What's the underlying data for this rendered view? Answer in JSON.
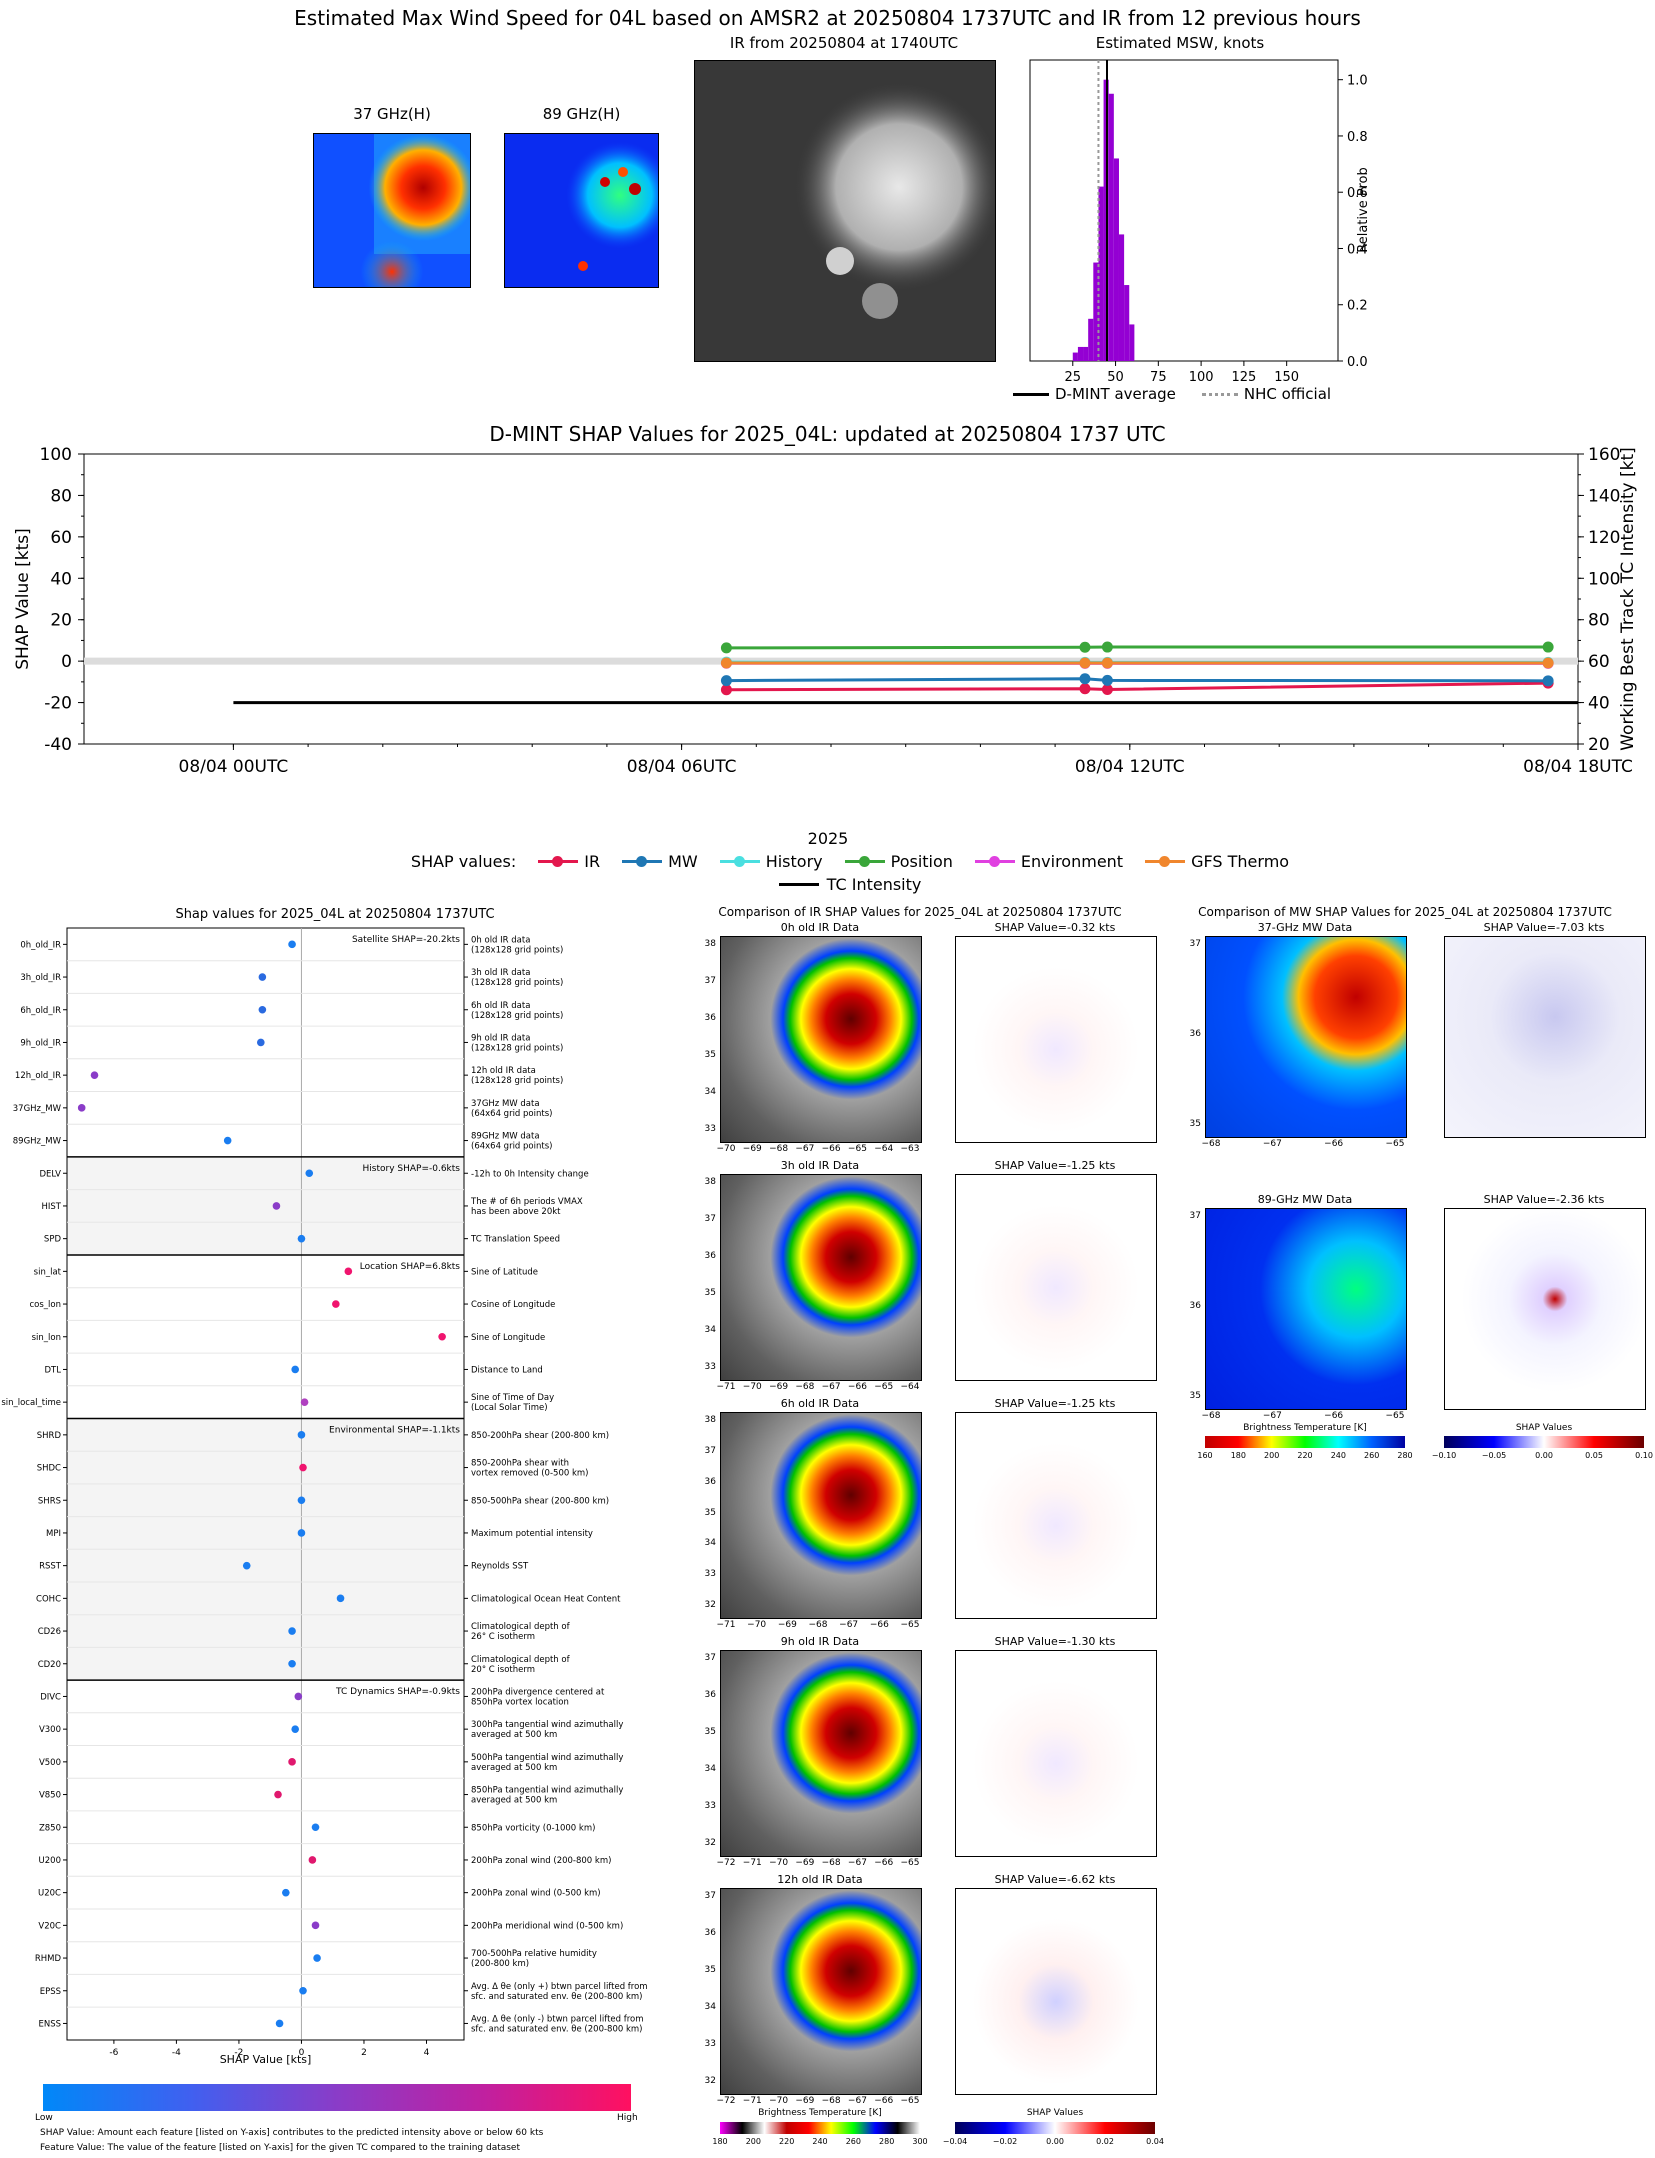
{
  "header": {
    "title": "Estimated Max Wind Speed for 04L based on AMSR2 at 20250804 1737UTC and IR from 12 previous hours",
    "mw37_title": "37 GHz(H)",
    "mw89_title": "89 GHz(H)",
    "ir_title": "IR from 20250804 at 1740UTC",
    "msw_title": "Estimated MSW, knots"
  },
  "msw_hist": {
    "ylabel": "Relative Prob",
    "xticks": [
      "25",
      "50",
      "75",
      "100",
      "125",
      "150"
    ],
    "yticks": [
      "0.0",
      "0.2",
      "0.4",
      "0.6",
      "0.8",
      "1.0"
    ],
    "legend_dmint": "D-MINT average",
    "legend_nhc": "NHC official",
    "dmint_avg": 45,
    "nhc_official": 40,
    "colors": {
      "bar": "#9400d3"
    },
    "bars": [
      {
        "x": 25,
        "p": 0.03
      },
      {
        "x": 28,
        "p": 0.05
      },
      {
        "x": 31,
        "p": 0.05
      },
      {
        "x": 34,
        "p": 0.15
      },
      {
        "x": 37,
        "p": 0.35
      },
      {
        "x": 40,
        "p": 0.62
      },
      {
        "x": 43,
        "p": 1.0
      },
      {
        "x": 46,
        "p": 0.95
      },
      {
        "x": 49,
        "p": 0.72
      },
      {
        "x": 52,
        "p": 0.45
      },
      {
        "x": 55,
        "p": 0.27
      },
      {
        "x": 58,
        "p": 0.13
      }
    ]
  },
  "chart_data": {
    "type": "line",
    "title": "D-MINT SHAP Values for 2025_04L: updated at 20250804 1737 UTC",
    "xlabel": "2025",
    "ylabel": "SHAP Value [kts]",
    "y2label": "Working Best Track TC Intensity [kt]",
    "ylim": [
      -40,
      100
    ],
    "y2lim": [
      20,
      160
    ],
    "yticks": [
      "-40",
      "-20",
      "0",
      "20",
      "40",
      "60",
      "80",
      "100"
    ],
    "y2ticks": [
      "20",
      "40",
      "60",
      "80",
      "100",
      "120",
      "140",
      "160"
    ],
    "xlim_hours": [
      -2,
      18
    ],
    "xticks": [
      {
        "h": 0,
        "label": "08/04 00UTC"
      },
      {
        "h": 6,
        "label": "08/04 06UTC"
      },
      {
        "h": 12,
        "label": "08/04 12UTC"
      },
      {
        "h": 18,
        "label": "08/04 18UTC"
      }
    ],
    "legend_prefix": "SHAP values:",
    "series": [
      {
        "name": "IR",
        "color": "#e3174d",
        "points": [
          [
            6.6,
            -13.8
          ],
          [
            11.4,
            -13.3
          ],
          [
            11.7,
            -13.7
          ],
          [
            17.6,
            -10.6
          ]
        ]
      },
      {
        "name": "MW",
        "color": "#1f77b4",
        "points": [
          [
            6.6,
            -9.4
          ],
          [
            11.4,
            -8.5
          ],
          [
            11.7,
            -9.3
          ],
          [
            17.6,
            -9.5
          ]
        ]
      },
      {
        "name": "History",
        "color": "#4adfe0",
        "points": [
          [
            6.6,
            -0.5
          ],
          [
            11.4,
            -0.6
          ],
          [
            11.7,
            -0.6
          ],
          [
            17.6,
            -0.6
          ]
        ]
      },
      {
        "name": "Position",
        "color": "#3aa63a",
        "points": [
          [
            6.6,
            6.4
          ],
          [
            11.4,
            6.7
          ],
          [
            11.7,
            6.8
          ],
          [
            17.6,
            6.8
          ]
        ]
      },
      {
        "name": "Environment",
        "color": "#e040e0",
        "points": [
          [
            6.6,
            -1.0
          ],
          [
            11.4,
            -1.1
          ],
          [
            11.7,
            -1.1
          ],
          [
            17.6,
            -1.1
          ]
        ]
      },
      {
        "name": "GFS Thermo",
        "color": "#f0862d",
        "points": [
          [
            6.6,
            -0.9
          ],
          [
            11.4,
            -0.9
          ],
          [
            11.7,
            -0.9
          ],
          [
            17.6,
            -0.9
          ]
        ]
      }
    ],
    "intensity": {
      "name": "TC Intensity",
      "color": "#000000",
      "value_kt": 40
    }
  },
  "shap_panel": {
    "title": "Shap values for 2025_04L at 20250804 1737UTC",
    "xlabel": "SHAP Value [kts]",
    "xticks": [
      "-6",
      "-4",
      "-2",
      "0",
      "2",
      "4"
    ],
    "groups": [
      {
        "label": "Satellite SHAP=-20.2kts"
      },
      {
        "label": "History SHAP=-0.6kts"
      },
      {
        "label": "Location SHAP=6.8kts"
      },
      {
        "label": "Environmental SHAP=-1.1kts"
      },
      {
        "label": "TC Dynamics SHAP=-0.9kts"
      }
    ],
    "features": [
      {
        "name": "0h_old_IR",
        "desc": "0h old IR data\n(128x128 grid points)",
        "v": -0.3,
        "c": "#1a7df0"
      },
      {
        "name": "3h_old_IR",
        "desc": "3h old IR data\n(128x128 grid points)",
        "v": -1.25,
        "c": "#2a6ae0"
      },
      {
        "name": "6h_old_IR",
        "desc": "6h old IR data\n(128x128 grid points)",
        "v": -1.25,
        "c": "#2a6ae0"
      },
      {
        "name": "9h_old_IR",
        "desc": "9h old IR data\n(128x128 grid points)",
        "v": -1.3,
        "c": "#2a6ae0"
      },
      {
        "name": "12h_old_IR",
        "desc": "12h old IR data\n(128x128 grid points)",
        "v": -6.62,
        "c": "#8a3cc8"
      },
      {
        "name": "37GHz_MW",
        "desc": "37GHz MW data\n(64x64 grid points)",
        "v": -7.03,
        "c": "#8a3cc8"
      },
      {
        "name": "89GHz_MW",
        "desc": "89GHz MW data\n(64x64 grid points)",
        "v": -2.36,
        "c": "#1a7df0"
      },
      {
        "name": "DELV",
        "desc": "-12h to 0h Intensity change",
        "v": 0.25,
        "c": "#1a7df0"
      },
      {
        "name": "HIST",
        "desc": "The # of 6h periods VMAX\nhas been above 20kt",
        "v": -0.8,
        "c": "#8a3cc8"
      },
      {
        "name": "SPD",
        "desc": "TC Translation Speed",
        "v": 0.0,
        "c": "#1a7df0"
      },
      {
        "name": "sin_lat",
        "desc": "Sine of Latitude",
        "v": 1.5,
        "c": "#f0146e"
      },
      {
        "name": "cos_lon",
        "desc": "Cosine of Longitude",
        "v": 1.1,
        "c": "#f0146e"
      },
      {
        "name": "sin_lon",
        "desc": "Sine of Longitude",
        "v": 4.5,
        "c": "#f0146e"
      },
      {
        "name": "DTL",
        "desc": "Distance to Land",
        "v": -0.2,
        "c": "#1a7df0"
      },
      {
        "name": "sin_local_time",
        "desc": "Sine of Time of Day\n(Local Solar Time)",
        "v": 0.1,
        "c": "#b040c0"
      },
      {
        "name": "SHRD",
        "desc": "850-200hPa shear (200-800 km)",
        "v": 0.0,
        "c": "#1a7df0"
      },
      {
        "name": "SHDC",
        "desc": "850-200hPa shear with\nvortex removed (0-500 km)",
        "v": 0.05,
        "c": "#f0146e"
      },
      {
        "name": "SHRS",
        "desc": "850-500hPa shear (200-800 km)",
        "v": 0.0,
        "c": "#1a7df0"
      },
      {
        "name": "MPI",
        "desc": "Maximum potential intensity",
        "v": 0.0,
        "c": "#1a7df0"
      },
      {
        "name": "RSST",
        "desc": "Reynolds SST",
        "v": -1.75,
        "c": "#1a7df0"
      },
      {
        "name": "COHC",
        "desc": "Climatological Ocean Heat Content",
        "v": 1.25,
        "c": "#1a7df0"
      },
      {
        "name": "CD26",
        "desc": "Climatological depth of\n26° C isotherm",
        "v": -0.3,
        "c": "#1a7df0"
      },
      {
        "name": "CD20",
        "desc": "Climatological depth of\n20° C isotherm",
        "v": -0.3,
        "c": "#1a7df0"
      },
      {
        "name": "DIVC",
        "desc": "200hPa divergence centered at\n850hPa vortex location",
        "v": -0.1,
        "c": "#8a3cc8"
      },
      {
        "name": "V300",
        "desc": "300hPa tangential wind azimuthally\naveraged at 500 km",
        "v": -0.2,
        "c": "#1a7df0"
      },
      {
        "name": "V500",
        "desc": "500hPa tangential wind azimuthally\naveraged at 500 km",
        "v": -0.3,
        "c": "#e0186e"
      },
      {
        "name": "V850",
        "desc": "850hPa tangential wind azimuthally\naveraged at 500 km",
        "v": -0.75,
        "c": "#e0186e"
      },
      {
        "name": "Z850",
        "desc": "850hPa vorticity (0-1000 km)",
        "v": 0.45,
        "c": "#1a7df0"
      },
      {
        "name": "U200",
        "desc": "200hPa zonal wind (200-800 km)",
        "v": 0.35,
        "c": "#e0186e"
      },
      {
        "name": "U20C",
        "desc": "200hPa zonal wind (0-500 km)",
        "v": -0.5,
        "c": "#1a7df0"
      },
      {
        "name": "V20C",
        "desc": "200hPa meridional wind (0-500 km)",
        "v": 0.45,
        "c": "#8a3cc8"
      },
      {
        "name": "RHMD",
        "desc": "700-500hPa relative humidity\n(200-800 km)",
        "v": 0.5,
        "c": "#1a7df0"
      },
      {
        "name": "EPSS",
        "desc": "Avg. Δ θe (only +) btwn parcel lifted from\nsfc. and saturated env. θe (200-800 km)",
        "v": 0.05,
        "c": "#1a7df0"
      },
      {
        "name": "ENSS",
        "desc": "Avg. Δ θe (only -) btwn parcel lifted from\nsfc. and saturated env. θe (200-800 km)",
        "v": -0.7,
        "c": "#1a7df0"
      }
    ],
    "cbar_low": "Low",
    "cbar_high": "High",
    "note1": "SHAP Value: Amount each feature [listed on Y-axis] contributes to the predicted intensity above or below 60 kts",
    "note2": "Feature Value: The value of the feature [listed on Y-axis] for the given TC compared to the training dataset"
  },
  "ir_compare": {
    "title": "Comparison of IR SHAP Values for 2025_04L at 20250804 1737UTC",
    "rows": [
      {
        "label": "0h old IR Data",
        "shap": "SHAP Value=-0.32 kts",
        "yticks": [
          "38",
          "37",
          "36",
          "35",
          "34",
          "33"
        ],
        "xticks": [
          "−70",
          "−69",
          "−68",
          "−67",
          "−66",
          "−65",
          "−64",
          "−63"
        ]
      },
      {
        "label": "3h old IR Data",
        "shap": "SHAP Value=-1.25 kts",
        "yticks": [
          "38",
          "37",
          "36",
          "35",
          "34",
          "33"
        ],
        "xticks": [
          "−71",
          "−70",
          "−69",
          "−68",
          "−67",
          "−66",
          "−65",
          "−64"
        ]
      },
      {
        "label": "6h old IR Data",
        "shap": "SHAP Value=-1.25 kts",
        "yticks": [
          "38",
          "37",
          "36",
          "35",
          "34",
          "33",
          "32"
        ],
        "xticks": [
          "−71",
          "−70",
          "−69",
          "−68",
          "−67",
          "−66",
          "−65"
        ]
      },
      {
        "label": "9h old IR Data",
        "shap": "SHAP Value=-1.30 kts",
        "yticks": [
          "37",
          "36",
          "35",
          "34",
          "33",
          "32"
        ],
        "xticks": [
          "−72",
          "−71",
          "−70",
          "−69",
          "−68",
          "−67",
          "−66",
          "−65"
        ]
      },
      {
        "label": "12h old IR Data",
        "shap": "SHAP Value=-6.62 kts",
        "yticks": [
          "37",
          "36",
          "35",
          "34",
          "33",
          "32"
        ],
        "xticks": [
          "−72",
          "−71",
          "−70",
          "−69",
          "−68",
          "−67",
          "−66",
          "−65"
        ]
      }
    ],
    "cbar_bt_label": "Brightness Temperature [K]",
    "cbar_bt_ticks": [
      "180",
      "200",
      "220",
      "240",
      "260",
      "280",
      "300"
    ],
    "cbar_shap_label": "SHAP Values",
    "cbar_shap_ticks": [
      "−0.04",
      "−0.02",
      "0.00",
      "0.02",
      "0.04"
    ]
  },
  "mw_compare": {
    "title": "Comparison of MW SHAP Values for 2025_04L at 20250804 1737UTC",
    "rows": [
      {
        "label": "37-GHz MW Data",
        "shap": "SHAP Value=-7.03 kts",
        "yticks": [
          "37",
          "36",
          "35"
        ],
        "xticks": [
          "−68",
          "−67",
          "−66",
          "−65"
        ]
      },
      {
        "label": "89-GHz MW Data",
        "shap": "SHAP Value=-2.36 kts",
        "yticks": [
          "37",
          "36",
          "35"
        ],
        "xticks": [
          "−68",
          "−67",
          "−66",
          "−65"
        ]
      }
    ],
    "cbar_bt_label": "Brightness Temperature [K]",
    "cbar_bt_ticks": [
      "160",
      "180",
      "200",
      "220",
      "240",
      "260",
      "280"
    ],
    "cbar_shap_label": "SHAP Values",
    "cbar_shap_ticks": [
      "−0.10",
      "−0.05",
      "0.00",
      "0.05",
      "0.10"
    ]
  }
}
